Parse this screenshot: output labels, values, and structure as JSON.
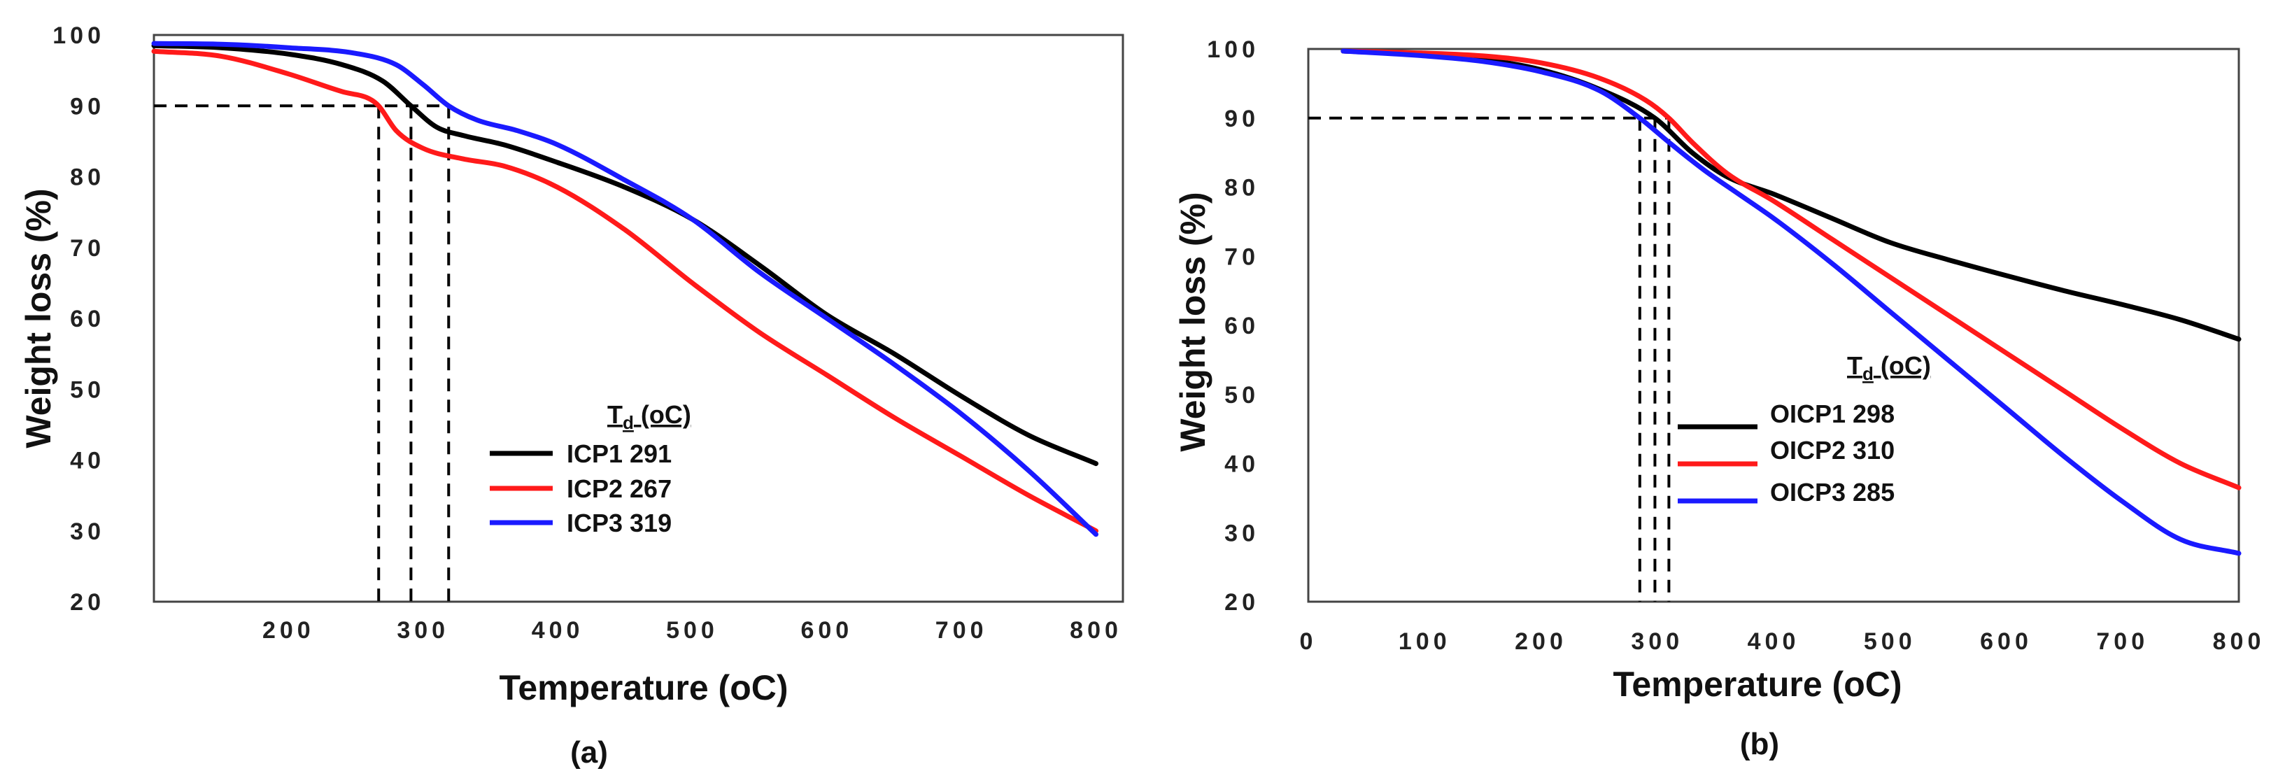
{
  "colors": {
    "black": "#000000",
    "red": "#ff1a1a",
    "blue": "#1a1aff"
  },
  "chart_data": [
    {
      "panel": "(a)",
      "type": "line",
      "xlabel": "Temperature (oC)",
      "ylabel": "Weight loss (%)",
      "xlim": [
        100,
        820
      ],
      "ylim": [
        20,
        100
      ],
      "xticks": [
        200,
        300,
        400,
        500,
        600,
        700,
        800
      ],
      "yticks": [
        20,
        30,
        40,
        50,
        60,
        70,
        80,
        90,
        100
      ],
      "threshold_y": 90,
      "legend_title": "Td (oC)",
      "legend_title_main": "T",
      "legend_title_sub": "d",
      "legend_title_rest": " (oC)",
      "series": [
        {
          "name": "ICP1",
          "td": 291,
          "label": "ICP1 291",
          "color": "#000000",
          "x": [
            100,
            150,
            200,
            240,
            270,
            291,
            310,
            330,
            360,
            400,
            450,
            500,
            550,
            600,
            650,
            700,
            750,
            800
          ],
          "y": [
            98.5,
            98.2,
            97.3,
            95.8,
            93.5,
            90,
            87,
            85.8,
            84.5,
            82,
            78.5,
            74,
            67.5,
            60.5,
            55,
            49,
            43.5,
            39.5
          ]
        },
        {
          "name": "ICP2",
          "td": 267,
          "label": "ICP2 267",
          "color": "#ff1a1a",
          "x": [
            100,
            150,
            200,
            240,
            260,
            267,
            280,
            300,
            330,
            360,
            400,
            450,
            500,
            550,
            600,
            650,
            700,
            750,
            800
          ],
          "y": [
            97.7,
            97,
            94.5,
            92,
            91,
            90,
            86.5,
            84,
            82.5,
            81.5,
            78.5,
            72.5,
            65,
            58,
            52,
            46,
            40.5,
            35,
            30
          ]
        },
        {
          "name": "ICP3",
          "td": 319,
          "label": "ICP3 319",
          "color": "#1a1aff",
          "x": [
            100,
            150,
            200,
            250,
            280,
            300,
            319,
            340,
            370,
            400,
            450,
            500,
            550,
            600,
            650,
            700,
            750,
            800
          ],
          "y": [
            98.8,
            98.7,
            98.2,
            97.4,
            95.8,
            93,
            90,
            88,
            86.5,
            84.5,
            79.5,
            74,
            66.5,
            60,
            53.5,
            46.5,
            38.5,
            29.5
          ]
        }
      ]
    },
    {
      "panel": "(b)",
      "type": "line",
      "xlabel": "Temperature (oC)",
      "ylabel": "Weight loss (%)",
      "xlim": [
        0,
        800
      ],
      "ylim": [
        20,
        100
      ],
      "xticks": [
        0,
        100,
        200,
        300,
        400,
        500,
        600,
        700,
        800
      ],
      "yticks": [
        20,
        30,
        40,
        50,
        60,
        70,
        80,
        90,
        100
      ],
      "threshold_y": 90,
      "legend_title": "Td (oC)",
      "legend_title_main": "T",
      "legend_title_sub": "d",
      "legend_title_rest": " (oC)",
      "series": [
        {
          "name": "OICP1",
          "td": 298,
          "label": "OICP1 298",
          "color": "#000000",
          "x": [
            30,
            100,
            150,
            200,
            250,
            298,
            330,
            360,
            400,
            450,
            500,
            550,
            600,
            650,
            700,
            750,
            800
          ],
          "y": [
            99.7,
            99.2,
            98.5,
            97,
            94.2,
            90,
            85,
            81.5,
            79,
            75.5,
            72,
            69.5,
            67.2,
            65,
            63,
            60.8,
            58
          ]
        },
        {
          "name": "OICP2",
          "td": 310,
          "label": "OICP2 310",
          "color": "#ff1a1a",
          "x": [
            30,
            100,
            150,
            200,
            250,
            290,
            310,
            330,
            360,
            400,
            450,
            500,
            550,
            600,
            650,
            700,
            750,
            800
          ],
          "y": [
            99.7,
            99.4,
            99,
            98,
            95.8,
            92.6,
            90,
            86.5,
            82,
            78,
            72.5,
            67,
            61.5,
            56,
            50.5,
            45,
            40,
            36.5
          ]
        },
        {
          "name": "OICP3",
          "td": 285,
          "label": "OICP3 285",
          "color": "#1a1aff",
          "x": [
            30,
            100,
            150,
            200,
            250,
            285,
            310,
            340,
            370,
            400,
            450,
            500,
            550,
            600,
            650,
            700,
            750,
            800
          ],
          "y": [
            99.7,
            99,
            98.2,
            96.7,
            94,
            90,
            86.5,
            82.5,
            79,
            75.5,
            69,
            62,
            55,
            48,
            41,
            34.5,
            29,
            27
          ]
        }
      ]
    }
  ]
}
